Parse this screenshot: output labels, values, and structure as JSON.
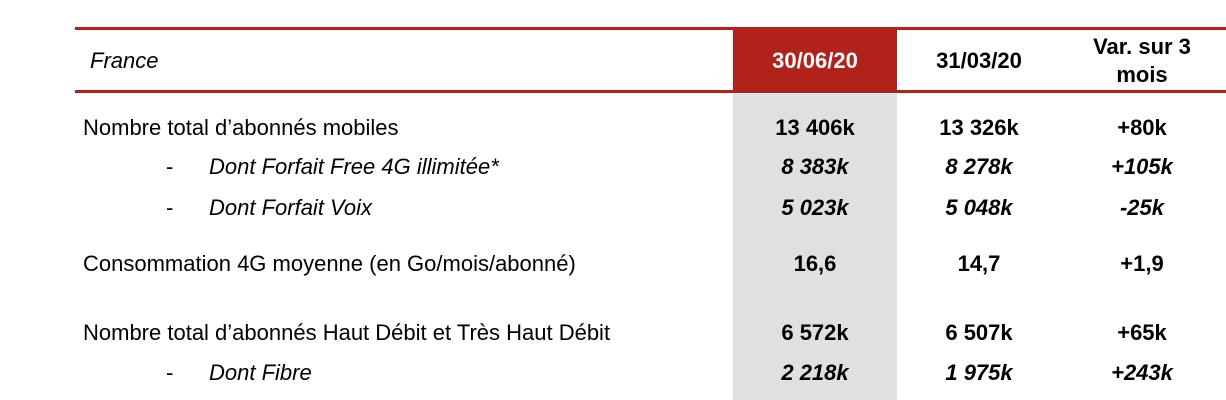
{
  "header": {
    "country": "France",
    "col1": "30/06/20",
    "col2": "31/03/20",
    "col3_line1": "Var. sur 3",
    "col3_line2": "mois"
  },
  "colors": {
    "accent": "#b0221a",
    "highlight_column": "#e0e0e0"
  },
  "rows": [
    {
      "label": "Nombre total d’abonnés mobiles",
      "sub": false,
      "v1": "13 406k",
      "v2": "13 326k",
      "v3": "+80k"
    },
    {
      "label": "Dont Forfait Free 4G illimitée*",
      "sub": true,
      "dash": "-",
      "v1": "8 383k",
      "v2": "8 278k",
      "v3": "+105k"
    },
    {
      "label": "Dont Forfait Voix",
      "sub": true,
      "dash": "-",
      "v1": "5 023k",
      "v2": "5 048k",
      "v3": "-25k"
    },
    {
      "label": "Consommation 4G moyenne (en Go/mois/abonné)",
      "sub": false,
      "v1": "16,6",
      "v2": "14,7",
      "v3": "+1,9"
    },
    {
      "label": "Nombre total d’abonnés Haut Débit et Très Haut Débit",
      "sub": false,
      "v1": "6 572k",
      "v2": "6 507k",
      "v3": "+65k"
    },
    {
      "label": "Dont Fibre",
      "sub": true,
      "dash": "-",
      "v1": "2 218k",
      "v2": "1 975k",
      "v3": "+243k"
    }
  ]
}
